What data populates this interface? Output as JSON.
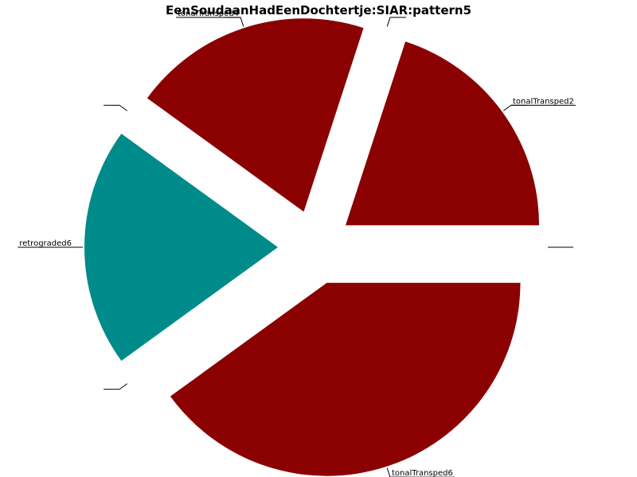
{
  "chart_data": {
    "type": "pie",
    "title": "EenSoudaanHadEenDochtertje:SIAR:pattern5",
    "start_angle_deg": 0,
    "direction": "counterclockwise",
    "exploded": true,
    "slices": [
      {
        "label": "tonalTransped2",
        "value": 1,
        "color": "#8b0000"
      },
      {
        "label": "",
        "value": 0,
        "color": "#8b0000"
      },
      {
        "label": "tonalTransped4",
        "value": 1,
        "color": "#8b0000"
      },
      {
        "label": "",
        "value": 0,
        "color": "#8b0000"
      },
      {
        "label": "retrograded6",
        "value": 1,
        "color": "#008b8b"
      },
      {
        "label": "",
        "value": 0,
        "color": "#8b0000"
      },
      {
        "label": "tonalTransped6",
        "value": 2,
        "color": "#8b0000"
      },
      {
        "label": "",
        "value": 0,
        "color": "#8b0000"
      }
    ]
  }
}
